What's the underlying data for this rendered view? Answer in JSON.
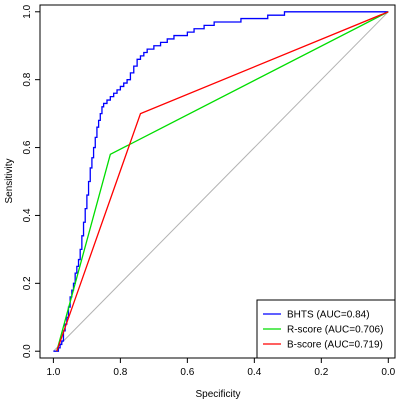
{
  "chart_data": {
    "type": "line",
    "title": "",
    "xlabel": "Specificity",
    "ylabel": "Sensitivity",
    "x_reversed": true,
    "xlim": [
      1.04,
      -0.02
    ],
    "ylim": [
      -0.02,
      1.02
    ],
    "x_ticks": [
      1.0,
      0.8,
      0.6,
      0.4,
      0.2,
      0.0
    ],
    "x_tick_labels": [
      "1.0",
      "0.8",
      "0.6",
      "0.4",
      "0.2",
      "0.0"
    ],
    "y_ticks": [
      0.0,
      0.2,
      0.4,
      0.6,
      0.8,
      1.0
    ],
    "y_tick_labels": [
      "0.0",
      "0.2",
      "0.4",
      "0.6",
      "0.8",
      "1.0"
    ],
    "grid": false,
    "reference_line": {
      "x": [
        1.0,
        0.0
      ],
      "y": [
        0.0,
        1.0
      ],
      "color": "#b3b3b3"
    },
    "legend_position": "bottom-right",
    "series": [
      {
        "name": "BHTS (AUC=0.84)",
        "color": "#0000ff",
        "x": [
          1.0,
          0.985,
          0.98,
          0.975,
          0.97,
          0.965,
          0.96,
          0.955,
          0.95,
          0.945,
          0.94,
          0.935,
          0.93,
          0.925,
          0.92,
          0.915,
          0.91,
          0.905,
          0.9,
          0.895,
          0.89,
          0.885,
          0.88,
          0.875,
          0.87,
          0.865,
          0.86,
          0.855,
          0.85,
          0.84,
          0.83,
          0.82,
          0.81,
          0.8,
          0.79,
          0.78,
          0.77,
          0.76,
          0.75,
          0.74,
          0.73,
          0.72,
          0.7,
          0.68,
          0.66,
          0.64,
          0.62,
          0.6,
          0.58,
          0.55,
          0.52,
          0.48,
          0.44,
          0.4,
          0.36,
          0.33,
          0.31,
          0.3,
          0.0
        ],
        "y": [
          0.0,
          0.0,
          0.01,
          0.02,
          0.03,
          0.06,
          0.08,
          0.1,
          0.13,
          0.16,
          0.18,
          0.2,
          0.23,
          0.25,
          0.27,
          0.3,
          0.34,
          0.38,
          0.42,
          0.46,
          0.5,
          0.54,
          0.57,
          0.6,
          0.63,
          0.66,
          0.68,
          0.7,
          0.72,
          0.73,
          0.74,
          0.75,
          0.76,
          0.77,
          0.78,
          0.79,
          0.8,
          0.82,
          0.84,
          0.86,
          0.87,
          0.88,
          0.89,
          0.9,
          0.91,
          0.92,
          0.93,
          0.93,
          0.94,
          0.95,
          0.96,
          0.97,
          0.97,
          0.98,
          0.98,
          0.99,
          0.99,
          1.0,
          1.0
        ]
      },
      {
        "name": "R-score (AUC=0.706)",
        "color": "#00dd00",
        "x": [
          0.99,
          0.83,
          0.0
        ],
        "y": [
          0.0,
          0.58,
          1.0
        ]
      },
      {
        "name": "B-score (AUC=0.719)",
        "color": "#ff0000",
        "x": [
          0.99,
          0.74,
          0.0
        ],
        "y": [
          0.0,
          0.7,
          1.0
        ]
      }
    ]
  }
}
